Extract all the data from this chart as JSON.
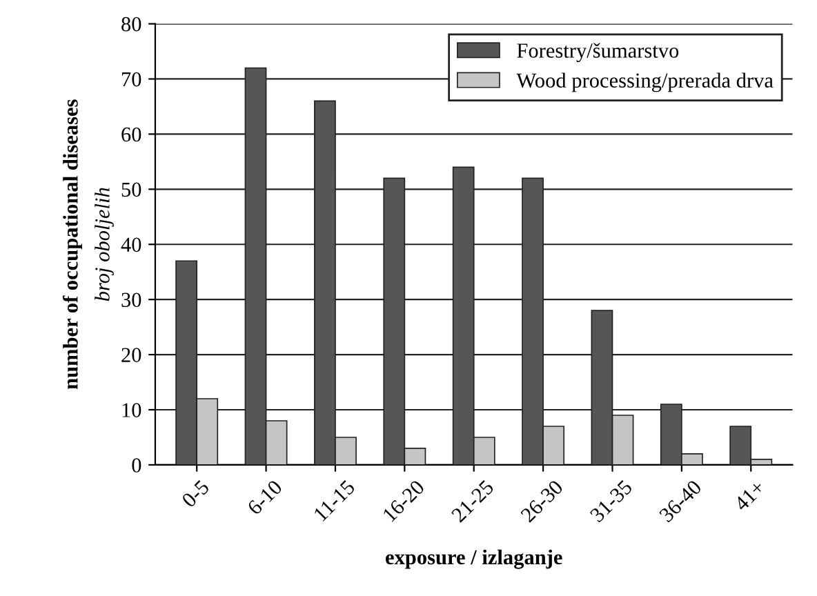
{
  "chart_data": {
    "type": "bar",
    "categories": [
      "0-5",
      "6-10",
      "11-15",
      "16-20",
      "21-25",
      "26-30",
      "31-35",
      "36-40",
      "41+"
    ],
    "series": [
      {
        "name": "Forestry/šumarstvo",
        "color": "#555658",
        "values": [
          37,
          72,
          66,
          52,
          54,
          52,
          28,
          11,
          7
        ]
      },
      {
        "name": "Wood processing/prerada drva",
        "color": "#c4c5c7",
        "values": [
          12,
          8,
          5,
          3,
          5,
          7,
          9,
          2,
          1
        ]
      }
    ],
    "xlabel": "exposure / izlaganje",
    "ylabel": "number of occupational diseases\nbroj oboljelih",
    "ylim": [
      0,
      80
    ],
    "yticks": [
      0,
      10,
      20,
      30,
      40,
      50,
      60,
      70,
      80
    ],
    "grid": "y",
    "legend": "top right"
  }
}
